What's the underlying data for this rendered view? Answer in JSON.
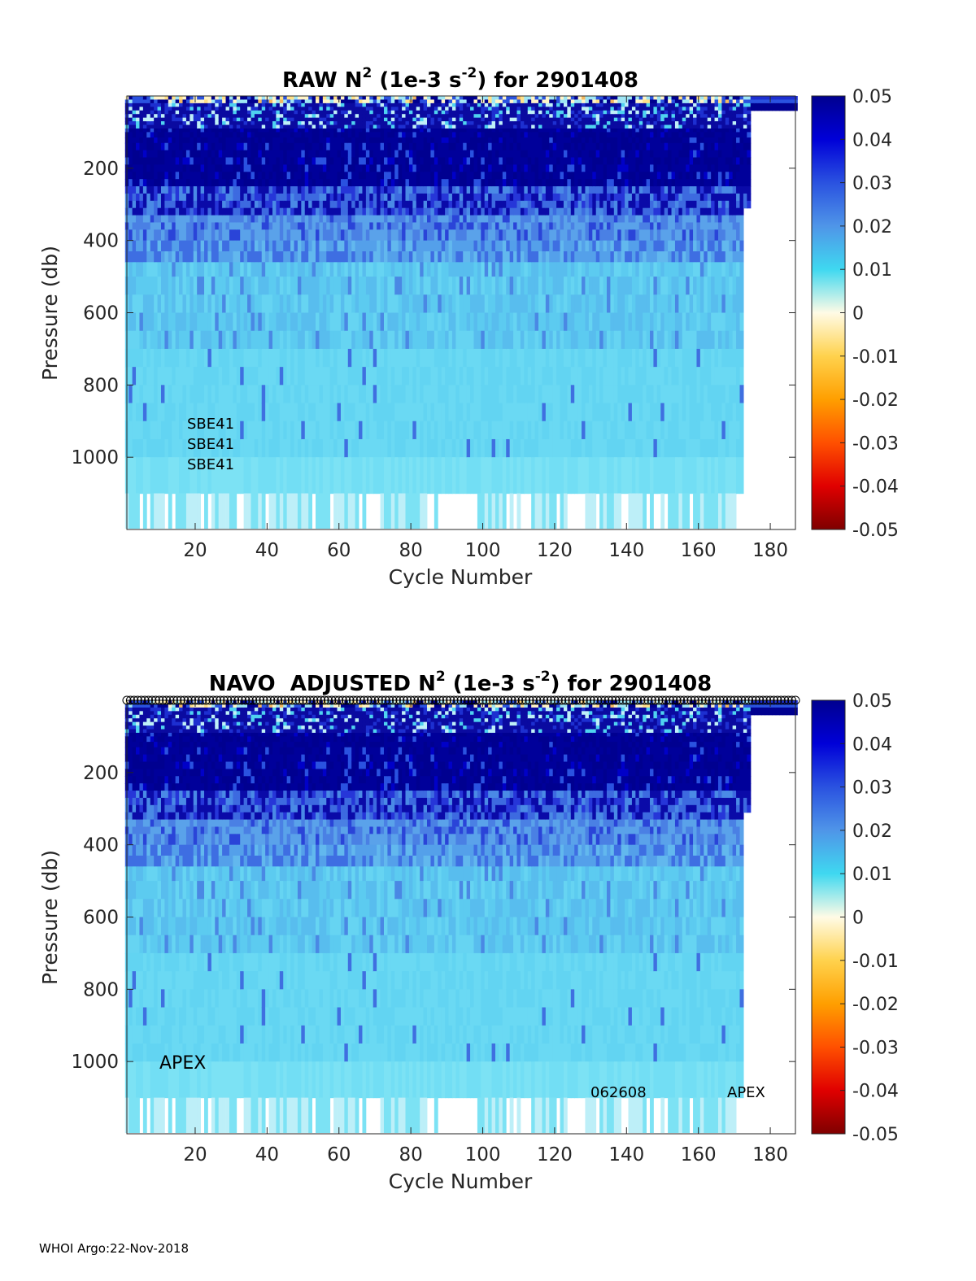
{
  "footer": "WHOI Argo:22-Nov-2018",
  "chart_data": [
    {
      "type": "heatmap",
      "title_prefix": "RAW N",
      "title_superscript": "2",
      "title_units_prefix": " (1e-3 s",
      "title_units_superscript": "-2",
      "title_suffix": ") for 2901408",
      "xlabel": "Cycle Number",
      "ylabel": "Pressure (db)",
      "xlim": [
        1,
        187
      ],
      "ylim": [
        1200,
        0
      ],
      "xticks": [
        20,
        40,
        60,
        80,
        100,
        120,
        140,
        160,
        180
      ],
      "yticks": [
        200,
        400,
        600,
        800,
        1000
      ],
      "last_cycle": 174,
      "colorbar": {
        "range": [
          -0.05,
          0.05
        ],
        "ticks": [
          "0.05",
          "0.04",
          "0.03",
          "0.02",
          "0.01",
          "0",
          "-0.01",
          "-0.02",
          "-0.03",
          "-0.04",
          "-0.05"
        ]
      },
      "annotations": [
        "SBE41",
        "SBE41",
        "SBE41"
      ],
      "top_markers": false
    },
    {
      "type": "heatmap",
      "title_prefix": "NAVO  ADJUSTED N",
      "title_superscript": "2",
      "title_units_prefix": " (1e-3 s",
      "title_units_superscript": "-2",
      "title_suffix": ") for 2901408",
      "xlabel": "Cycle Number",
      "ylabel": "Pressure (db)",
      "xlim": [
        1,
        187
      ],
      "ylim": [
        1200,
        0
      ],
      "xticks": [
        20,
        40,
        60,
        80,
        100,
        120,
        140,
        160,
        180
      ],
      "yticks": [
        200,
        400,
        600,
        800,
        1000
      ],
      "last_cycle": 174,
      "colorbar": {
        "range": [
          -0.05,
          0.05
        ],
        "ticks": [
          "0.05",
          "0.04",
          "0.03",
          "0.02",
          "0.01",
          "0",
          "-0.01",
          "-0.02",
          "-0.03",
          "-0.04",
          "-0.05"
        ]
      },
      "annotations": [
        "APEX",
        "062608",
        "APEX"
      ],
      "top_markers": true
    }
  ]
}
